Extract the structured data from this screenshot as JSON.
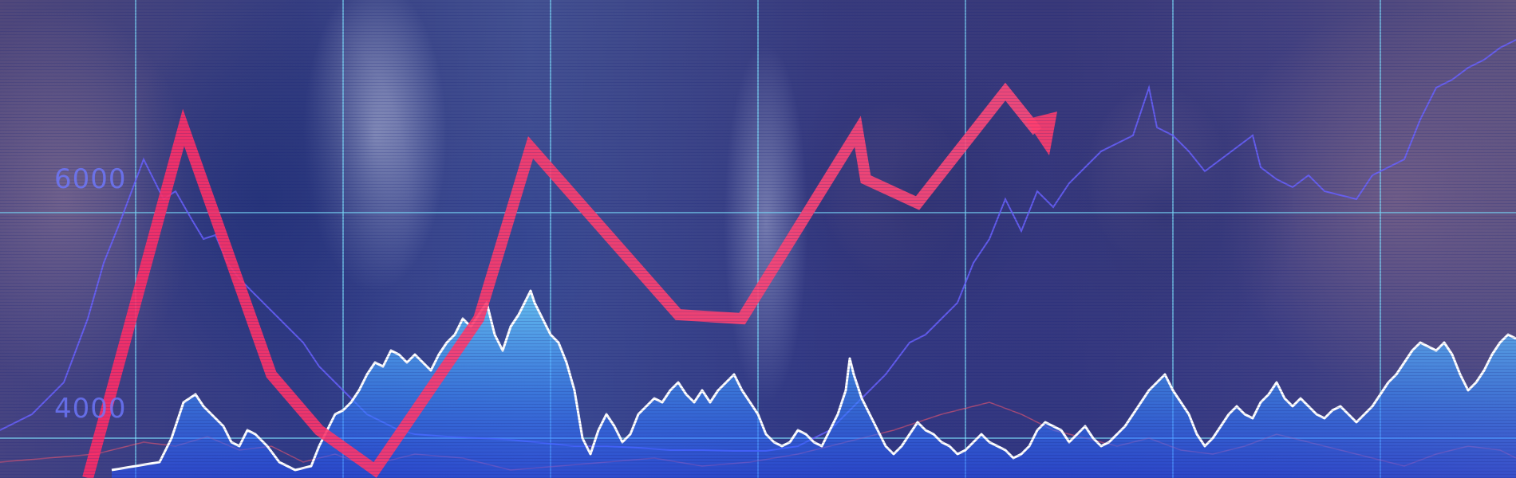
{
  "image": {
    "subject": "business-finance-banner",
    "colors": {
      "grid": "#7fe3ff",
      "trend_arrow": "#ff3e6e",
      "white_line": "#ffffff",
      "area_fill": "#3a8cff",
      "blue_line": "#6a62ff"
    }
  },
  "axis": {
    "upper_label": "6000",
    "lower_label": "4000"
  }
}
